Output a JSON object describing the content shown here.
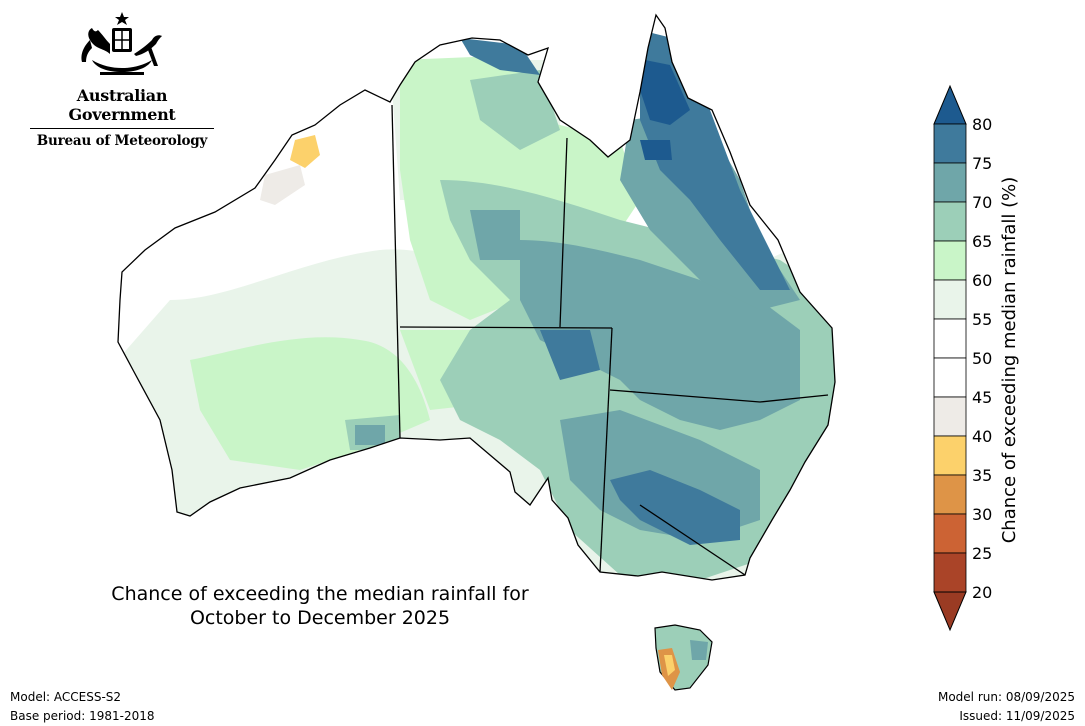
{
  "logo": {
    "government": "Australian Government",
    "agency": "Bureau of Meteorology"
  },
  "title": {
    "line1": "Chance of exceeding the median rainfall for",
    "line2": "October to December 2025"
  },
  "footer": {
    "model": "Model: ACCESS-S2",
    "base_period": "Base period: 1981-2018",
    "model_run": "Model run: 08/09/2025",
    "issued": "Issued: 11/09/2025"
  },
  "legend": {
    "label": "Chance of exceeding median rainfall (%)",
    "ticks": [
      "80",
      "75",
      "70",
      "65",
      "60",
      "55",
      "50",
      "45",
      "40",
      "35",
      "30",
      "25",
      "20"
    ],
    "bins": [
      {
        "range": "75-80",
        "color": "#3f7a9c"
      },
      {
        "range": "70-75",
        "color": "#6fa6a9"
      },
      {
        "range": "65-70",
        "color": "#9ccfb8"
      },
      {
        "range": "60-65",
        "color": "#c9f5c8"
      },
      {
        "range": "55-60",
        "color": "#e9f4ea"
      },
      {
        "range": "50-55",
        "color": "#ffffff"
      },
      {
        "range": "45-50",
        "color": "#ffffff"
      },
      {
        "range": "40-45",
        "color": "#eeebe7"
      },
      {
        "range": "35-40",
        "color": "#fcd16b"
      },
      {
        "range": "30-35",
        "color": "#de9447"
      },
      {
        "range": "25-30",
        "color": "#cc6334"
      },
      {
        "range": "20-25",
        "color": "#aa4428"
      }
    ],
    "above_color": "#1d5a8f",
    "below_color": "#9a3b23"
  }
}
